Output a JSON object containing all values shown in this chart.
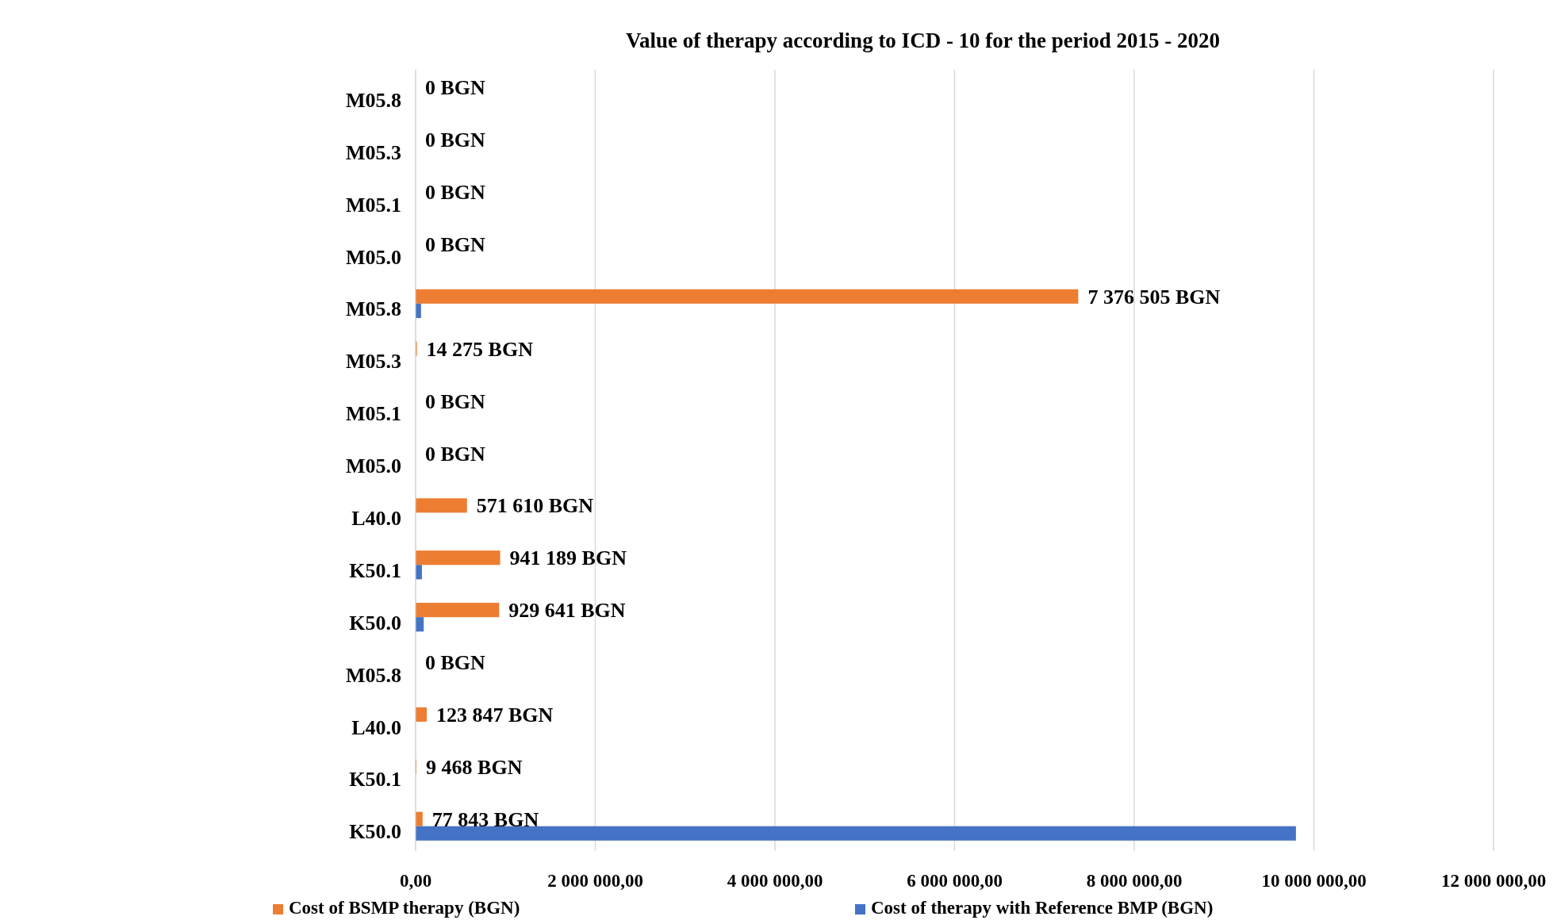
{
  "chart_data": {
    "type": "bar",
    "orientation": "horizontal",
    "title": "Value of therapy according to ICD - 10 for the period 2015 - 2020",
    "categories": [
      "M05.8",
      "M05.3",
      "M05.1",
      "M05.0",
      "M05.8",
      "M05.3",
      "M05.1",
      "M05.0",
      "L40.0",
      "K50.1",
      "K50.0",
      "M05.8",
      "L40.0",
      "K50.1",
      "K50.0"
    ],
    "series": [
      {
        "name": "Cost of BSMP therapy (BGN)",
        "color": "#ed7d31",
        "values": [
          0,
          0,
          0,
          0,
          7376505,
          14275,
          0,
          0,
          571610,
          941189,
          929641,
          0,
          123847,
          9468,
          77843
        ],
        "value_labels": [
          "0 BGN",
          "0 BGN",
          "0 BGN",
          "0 BGN",
          "7 376 505 BGN",
          "14 275 BGN",
          "0 BGN",
          "0 BGN",
          "571 610 BGN",
          "941 189 BGN",
          "929 641 BGN",
          "0 BGN",
          "123 847 BGN",
          "9 468 BGN",
          "77 843 BGN"
        ]
      },
      {
        "name": "Cost of therapy with Reference BMP (BGN)",
        "color": "#4472c4",
        "values": [
          0,
          0,
          0,
          0,
          60000,
          0,
          0,
          0,
          0,
          70000,
          90000,
          0,
          0,
          0,
          9800000
        ]
      }
    ],
    "xlim": [
      0,
      12000000
    ],
    "xticks": [
      {
        "value": 0,
        "label": "0,00"
      },
      {
        "value": 2000000,
        "label": "2 000 000,00"
      },
      {
        "value": 4000000,
        "label": "4 000 000,00"
      },
      {
        "value": 6000000,
        "label": "6 000 000,00"
      },
      {
        "value": 8000000,
        "label": "8 000 000,00"
      },
      {
        "value": 10000000,
        "label": "10 000 000,00"
      },
      {
        "value": 12000000,
        "label": "12 000 000,00"
      }
    ],
    "grid": "x",
    "legend": "bottom"
  }
}
